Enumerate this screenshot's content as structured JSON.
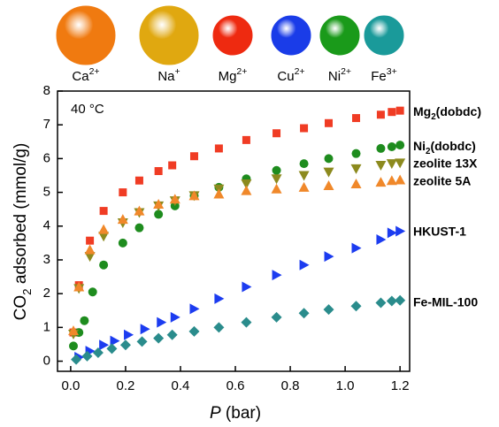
{
  "chart_data": {
    "type": "scatter",
    "annotation": "40 °C",
    "xlabel": "P (bar)",
    "ylabel": "CO2 adsorbed (mmol/g)",
    "xlim": [
      -0.048,
      1.235
    ],
    "ylim": [
      -0.3,
      8
    ],
    "xticks": [
      {
        "value": 0,
        "label": "0.0"
      },
      {
        "value": 0.2,
        "label": "0.2"
      },
      {
        "value": 0.4,
        "label": "0.4"
      },
      {
        "value": 0.6,
        "label": "0.6"
      },
      {
        "value": 0.8,
        "label": "0.8"
      },
      {
        "value": 1,
        "label": "1.0"
      },
      {
        "value": 1.2,
        "label": "1.2"
      }
    ],
    "yticks": [
      0,
      1,
      2,
      3,
      4,
      5,
      6,
      7,
      8
    ],
    "ions": [
      {
        "label": "Ca2+",
        "color": "#f07a10"
      },
      {
        "label": "Na+",
        "color": "#e0a810"
      },
      {
        "label": "Mg2+",
        "color": "#ee2a10"
      },
      {
        "label": "Cu2+",
        "color": "#1a3ce8"
      },
      {
        "label": "Ni2+",
        "color": "#1a9a1a"
      },
      {
        "label": "Fe3+",
        "color": "#1a9a9a"
      }
    ],
    "series": [
      {
        "name": "Mg2(dobdc)",
        "color": "#f03c24",
        "marker": "square",
        "x": [
          0.01,
          0.03,
          0.07,
          0.12,
          0.19,
          0.25,
          0.32,
          0.37,
          0.45,
          0.54,
          0.64,
          0.75,
          0.85,
          0.94,
          1.04,
          1.13,
          1.17,
          1.2
        ],
        "values": [
          0.85,
          2.25,
          3.57,
          4.45,
          5.0,
          5.35,
          5.63,
          5.8,
          6.07,
          6.3,
          6.55,
          6.75,
          6.9,
          7.05,
          7.2,
          7.3,
          7.38,
          7.42
        ]
      },
      {
        "name": "Ni2(dobdc)",
        "color": "#1e8c1e",
        "marker": "circle",
        "x": [
          0.01,
          0.03,
          0.05,
          0.08,
          0.12,
          0.19,
          0.25,
          0.32,
          0.38,
          0.45,
          0.54,
          0.64,
          0.75,
          0.85,
          0.94,
          1.04,
          1.13,
          1.17,
          1.2
        ],
        "values": [
          0.45,
          0.85,
          1.2,
          2.05,
          2.85,
          3.5,
          3.95,
          4.35,
          4.6,
          4.9,
          5.15,
          5.4,
          5.65,
          5.85,
          6.0,
          6.15,
          6.3,
          6.35,
          6.4
        ]
      },
      {
        "name": "zeolite 13X",
        "color": "#8c8a1e",
        "marker": "triangle-down",
        "x": [
          0.01,
          0.03,
          0.07,
          0.12,
          0.19,
          0.25,
          0.32,
          0.38,
          0.45,
          0.54,
          0.64,
          0.75,
          0.85,
          0.94,
          1.04,
          1.13,
          1.17,
          1.2
        ],
        "values": [
          0.8,
          2.15,
          3.1,
          3.7,
          4.1,
          4.4,
          4.6,
          4.75,
          4.9,
          5.1,
          5.25,
          5.4,
          5.5,
          5.6,
          5.7,
          5.8,
          5.85,
          5.87
        ]
      },
      {
        "name": "zeolite 5A",
        "color": "#f0882a",
        "marker": "triangle-up",
        "x": [
          0.01,
          0.03,
          0.07,
          0.12,
          0.19,
          0.25,
          0.32,
          0.38,
          0.45,
          0.54,
          0.64,
          0.75,
          0.85,
          0.94,
          1.04,
          1.13,
          1.17,
          1.2
        ],
        "values": [
          0.9,
          2.2,
          3.3,
          3.9,
          4.2,
          4.45,
          4.65,
          4.8,
          4.9,
          4.95,
          5.05,
          5.1,
          5.15,
          5.2,
          5.25,
          5.3,
          5.35,
          5.37
        ]
      },
      {
        "name": "HKUST-1",
        "color": "#1c3cf0",
        "marker": "triangle-right",
        "x": [
          0.03,
          0.07,
          0.12,
          0.16,
          0.21,
          0.27,
          0.33,
          0.38,
          0.45,
          0.54,
          0.64,
          0.75,
          0.85,
          0.94,
          1.04,
          1.13,
          1.17,
          1.2
        ],
        "values": [
          0.12,
          0.3,
          0.48,
          0.6,
          0.78,
          0.95,
          1.15,
          1.3,
          1.55,
          1.85,
          2.2,
          2.55,
          2.85,
          3.1,
          3.35,
          3.6,
          3.8,
          3.85
        ]
      },
      {
        "name": "Fe-MIL-100",
        "color": "#2a8c8c",
        "marker": "diamond",
        "x": [
          0.02,
          0.06,
          0.1,
          0.15,
          0.2,
          0.26,
          0.32,
          0.37,
          0.45,
          0.54,
          0.64,
          0.75,
          0.85,
          0.94,
          1.04,
          1.13,
          1.17,
          1.2
        ],
        "values": [
          0.05,
          0.15,
          0.25,
          0.37,
          0.48,
          0.58,
          0.68,
          0.78,
          0.88,
          1.0,
          1.15,
          1.3,
          1.42,
          1.53,
          1.63,
          1.73,
          1.78,
          1.8
        ]
      }
    ]
  }
}
